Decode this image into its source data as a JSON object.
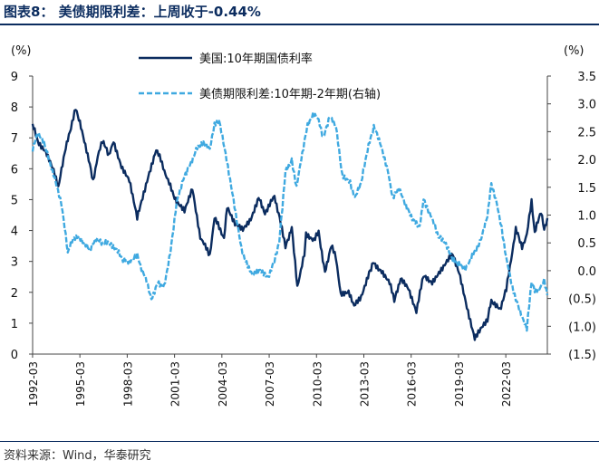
{
  "title": "图表8： 美债期限利差：上周收于-0.44%",
  "source": "资料来源：Wind，华泰研究",
  "colors": {
    "series1": "#0b2c5f",
    "series2": "#3fa9e0",
    "rule": "#0b2c5f"
  },
  "chart_data": {
    "type": "line",
    "left_unit": "(%)",
    "right_unit": "(%)",
    "left_axis": {
      "min": 0,
      "max": 9,
      "ticks": [
        "0",
        "1",
        "2",
        "3",
        "4",
        "5",
        "6",
        "7",
        "8",
        "9"
      ]
    },
    "right_axis": {
      "min": -1.5,
      "max": 3.5,
      "ticks": [
        "(1.5)",
        "(1.0)",
        "(0.5)",
        "0.0",
        "0.5",
        "1.0",
        "1.5",
        "2.0",
        "2.5",
        "3.0",
        "3.5"
      ]
    },
    "x_range": [
      1992.17,
      2024.8
    ],
    "x_ticks": [
      "1992-03",
      "1995-03",
      "1998-03",
      "2001-03",
      "2004-03",
      "2007-03",
      "2010-03",
      "2013-03",
      "2016-03",
      "2019-03",
      "2022-03"
    ],
    "legend_placement": "top",
    "series": [
      {
        "name": "美国:10年期国债利率",
        "axis": "left",
        "style": "solid",
        "points": [
          [
            1992.17,
            7.5
          ],
          [
            1992.5,
            6.9
          ],
          [
            1993.0,
            6.6
          ],
          [
            1993.5,
            5.9
          ],
          [
            1993.8,
            5.4
          ],
          [
            1994.2,
            6.5
          ],
          [
            1994.6,
            7.3
          ],
          [
            1994.9,
            8.0
          ],
          [
            1995.3,
            7.2
          ],
          [
            1995.8,
            6.2
          ],
          [
            1996.0,
            5.6
          ],
          [
            1996.3,
            6.4
          ],
          [
            1996.6,
            6.9
          ],
          [
            1997.0,
            6.4
          ],
          [
            1997.3,
            6.9
          ],
          [
            1997.8,
            6.1
          ],
          [
            1998.3,
            5.6
          ],
          [
            1998.8,
            4.4
          ],
          [
            1999.0,
            4.8
          ],
          [
            1999.5,
            5.8
          ],
          [
            2000.0,
            6.6
          ],
          [
            2000.3,
            6.3
          ],
          [
            2000.9,
            5.4
          ],
          [
            2001.3,
            4.9
          ],
          [
            2001.8,
            4.6
          ],
          [
            2002.3,
            5.4
          ],
          [
            2002.8,
            3.8
          ],
          [
            2003.4,
            3.2
          ],
          [
            2003.7,
            4.4
          ],
          [
            2004.3,
            3.8
          ],
          [
            2004.5,
            4.8
          ],
          [
            2005.0,
            4.2
          ],
          [
            2005.5,
            4.0
          ],
          [
            2006.0,
            4.4
          ],
          [
            2006.5,
            5.1
          ],
          [
            2006.9,
            4.6
          ],
          [
            2007.5,
            5.1
          ],
          [
            2007.9,
            4.2
          ],
          [
            2008.2,
            3.5
          ],
          [
            2008.6,
            4.1
          ],
          [
            2008.95,
            2.2
          ],
          [
            2009.4,
            3.2
          ],
          [
            2009.5,
            3.9
          ],
          [
            2010.0,
            3.7
          ],
          [
            2010.3,
            3.9
          ],
          [
            2010.7,
            2.6
          ],
          [
            2011.1,
            3.5
          ],
          [
            2011.4,
            3.1
          ],
          [
            2011.7,
            2.0
          ],
          [
            2012.2,
            2.0
          ],
          [
            2012.55,
            1.5
          ],
          [
            2013.0,
            1.9
          ],
          [
            2013.5,
            2.6
          ],
          [
            2013.75,
            3.0
          ],
          [
            2014.3,
            2.7
          ],
          [
            2014.8,
            2.3
          ],
          [
            2015.1,
            1.7
          ],
          [
            2015.5,
            2.4
          ],
          [
            2016.0,
            2.1
          ],
          [
            2016.5,
            1.4
          ],
          [
            2016.95,
            2.5
          ],
          [
            2017.5,
            2.3
          ],
          [
            2018.0,
            2.7
          ],
          [
            2018.8,
            3.2
          ],
          [
            2019.2,
            2.6
          ],
          [
            2019.7,
            1.5
          ],
          [
            2020.2,
            0.55
          ],
          [
            2020.5,
            0.7
          ],
          [
            2021.0,
            1.1
          ],
          [
            2021.25,
            1.7
          ],
          [
            2021.8,
            1.4
          ],
          [
            2022.2,
            2.1
          ],
          [
            2022.5,
            3.0
          ],
          [
            2022.8,
            4.1
          ],
          [
            2023.2,
            3.5
          ],
          [
            2023.5,
            3.9
          ],
          [
            2023.8,
            4.9
          ],
          [
            2024.0,
            3.9
          ],
          [
            2024.4,
            4.6
          ],
          [
            2024.6,
            4.0
          ],
          [
            2024.8,
            4.4
          ]
        ]
      },
      {
        "name": "美债期限利差:10年期-2年期(右轴)",
        "axis": "right",
        "style": "dashed",
        "points": [
          [
            1992.17,
            2.2
          ],
          [
            1992.5,
            2.5
          ],
          [
            1992.9,
            2.3
          ],
          [
            1993.3,
            1.9
          ],
          [
            1993.7,
            1.5
          ],
          [
            1994.0,
            1.2
          ],
          [
            1994.2,
            0.8
          ],
          [
            1994.4,
            0.3
          ],
          [
            1994.6,
            0.5
          ],
          [
            1995.0,
            0.6
          ],
          [
            1995.4,
            0.5
          ],
          [
            1995.8,
            0.4
          ],
          [
            1996.2,
            0.6
          ],
          [
            1996.6,
            0.5
          ],
          [
            1997.0,
            0.5
          ],
          [
            1997.5,
            0.4
          ],
          [
            1997.9,
            0.2
          ],
          [
            1998.3,
            0.15
          ],
          [
            1998.8,
            0.3
          ],
          [
            1999.0,
            0.1
          ],
          [
            1999.4,
            -0.2
          ],
          [
            1999.7,
            -0.5
          ],
          [
            2000.1,
            -0.2
          ],
          [
            2000.5,
            -0.3
          ],
          [
            2000.9,
            0.3
          ],
          [
            2001.3,
            1.2
          ],
          [
            2001.8,
            1.7
          ],
          [
            2002.2,
            1.9
          ],
          [
            2002.6,
            2.2
          ],
          [
            2003.0,
            2.3
          ],
          [
            2003.4,
            2.2
          ],
          [
            2003.7,
            2.6
          ],
          [
            2004.0,
            2.7
          ],
          [
            2004.4,
            2.1
          ],
          [
            2004.9,
            1.3
          ],
          [
            2005.4,
            0.4
          ],
          [
            2005.8,
            0.1
          ],
          [
            2006.1,
            -0.1
          ],
          [
            2006.6,
            0.0
          ],
          [
            2007.1,
            -0.1
          ],
          [
            2007.5,
            0.2
          ],
          [
            2007.8,
            0.5
          ],
          [
            2008.2,
            1.8
          ],
          [
            2008.6,
            2.0
          ],
          [
            2008.9,
            1.5
          ],
          [
            2009.2,
            2.0
          ],
          [
            2009.6,
            2.6
          ],
          [
            2010.0,
            2.8
          ],
          [
            2010.3,
            2.7
          ],
          [
            2010.6,
            2.4
          ],
          [
            2011.0,
            2.8
          ],
          [
            2011.4,
            2.6
          ],
          [
            2011.8,
            1.7
          ],
          [
            2012.3,
            1.6
          ],
          [
            2012.6,
            1.3
          ],
          [
            2013.0,
            1.6
          ],
          [
            2013.4,
            2.2
          ],
          [
            2013.8,
            2.6
          ],
          [
            2014.2,
            2.3
          ],
          [
            2014.7,
            1.8
          ],
          [
            2015.0,
            1.3
          ],
          [
            2015.4,
            1.5
          ],
          [
            2015.9,
            1.1
          ],
          [
            2016.3,
            0.9
          ],
          [
            2016.7,
            0.8
          ],
          [
            2016.95,
            1.3
          ],
          [
            2017.4,
            1.0
          ],
          [
            2017.9,
            0.6
          ],
          [
            2018.3,
            0.5
          ],
          [
            2018.8,
            0.2
          ],
          [
            2019.2,
            0.1
          ],
          [
            2019.6,
            0.0
          ],
          [
            2019.9,
            0.2
          ],
          [
            2020.3,
            0.4
          ],
          [
            2020.6,
            0.6
          ],
          [
            2021.0,
            1.0
          ],
          [
            2021.25,
            1.55
          ],
          [
            2021.6,
            1.2
          ],
          [
            2021.9,
            0.8
          ],
          [
            2022.2,
            0.2
          ],
          [
            2022.5,
            -0.2
          ],
          [
            2022.8,
            -0.5
          ],
          [
            2023.2,
            -0.8
          ],
          [
            2023.5,
            -1.05
          ],
          [
            2023.8,
            -0.2
          ],
          [
            2024.0,
            -0.35
          ],
          [
            2024.3,
            -0.3
          ],
          [
            2024.6,
            -0.2
          ],
          [
            2024.8,
            -0.44
          ]
        ]
      }
    ]
  }
}
